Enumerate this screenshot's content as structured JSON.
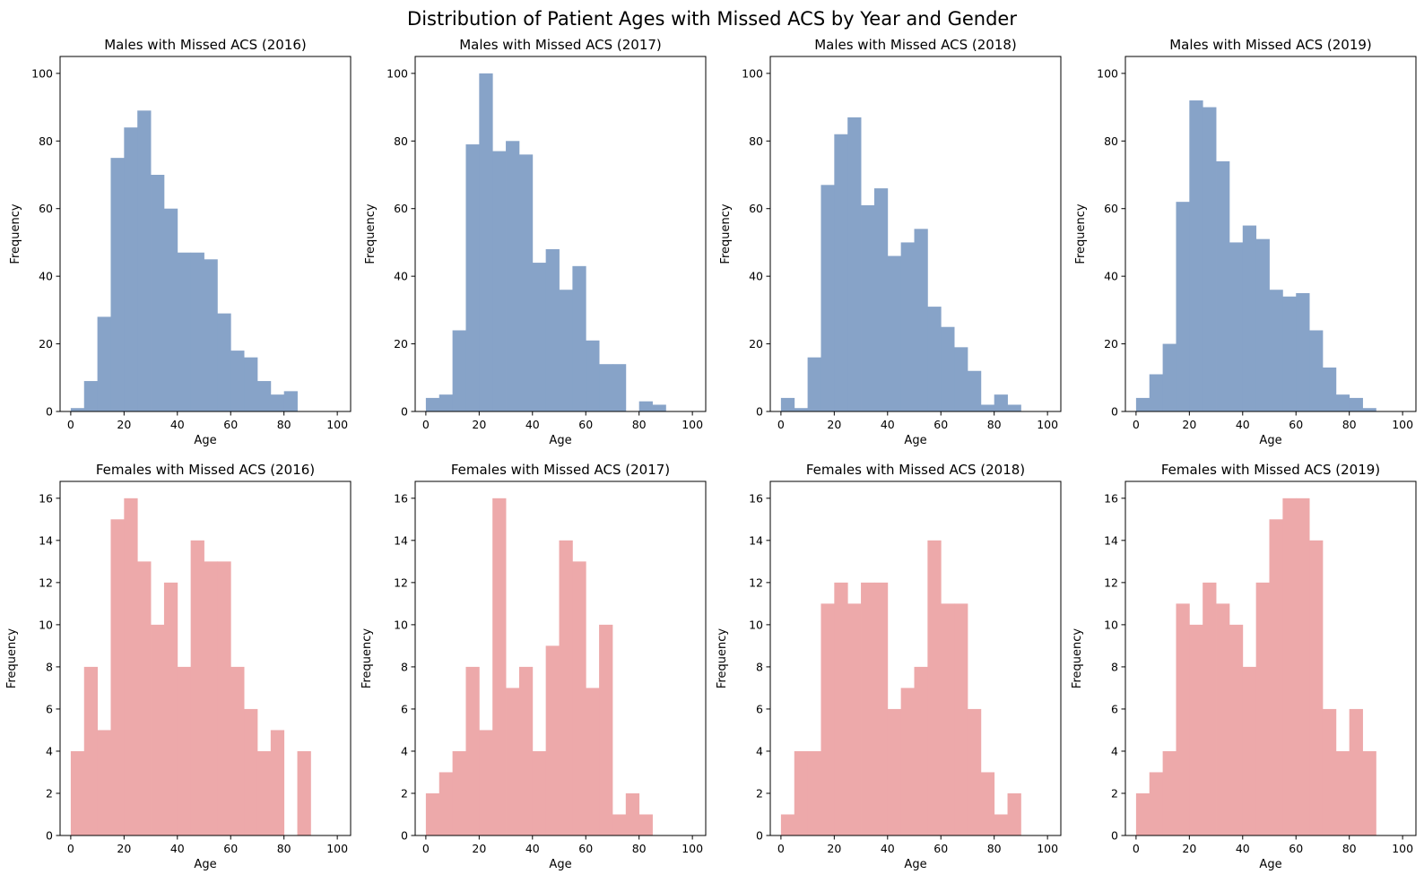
{
  "figure": {
    "title": "Distribution of Patient Ages with Missed ACS by Year and Gender"
  },
  "colors": {
    "male": "#87a3c8",
    "female": "#eda9aa",
    "axis": "#000000"
  },
  "chart_data": [
    {
      "type": "bar",
      "title": "Males with Missed ACS (2016)",
      "xlabel": "Age",
      "ylabel": "Frequency",
      "xlim": [
        -4,
        105
      ],
      "ylim": [
        0,
        105
      ],
      "xticks": [
        0,
        20,
        40,
        60,
        80,
        100
      ],
      "yticks": [
        0,
        20,
        40,
        60,
        80,
        100
      ],
      "bin_width": 5,
      "bin_start": 0,
      "values": [
        1,
        9,
        28,
        75,
        84,
        89,
        70,
        60,
        47,
        47,
        45,
        29,
        18,
        16,
        9,
        5,
        6,
        0,
        0,
        0
      ]
    },
    {
      "type": "bar",
      "title": "Males with Missed ACS (2017)",
      "xlabel": "Age",
      "ylabel": "Frequency",
      "xlim": [
        -4,
        105
      ],
      "ylim": [
        0,
        105
      ],
      "xticks": [
        0,
        20,
        40,
        60,
        80,
        100
      ],
      "yticks": [
        0,
        20,
        40,
        60,
        80,
        100
      ],
      "bin_width": 5,
      "bin_start": 0,
      "values": [
        4,
        5,
        24,
        79,
        100,
        77,
        80,
        76,
        44,
        48,
        36,
        43,
        21,
        14,
        14,
        0,
        3,
        2,
        0,
        0
      ]
    },
    {
      "type": "bar",
      "title": "Males with Missed ACS (2018)",
      "xlabel": "Age",
      "ylabel": "Frequency",
      "xlim": [
        -4,
        105
      ],
      "ylim": [
        0,
        105
      ],
      "xticks": [
        0,
        20,
        40,
        60,
        80,
        100
      ],
      "yticks": [
        0,
        20,
        40,
        60,
        80,
        100
      ],
      "bin_width": 5,
      "bin_start": 0,
      "values": [
        4,
        1,
        16,
        67,
        82,
        87,
        61,
        66,
        46,
        50,
        54,
        31,
        25,
        19,
        12,
        2,
        5,
        2,
        0,
        0
      ]
    },
    {
      "type": "bar",
      "title": "Males with Missed ACS (2019)",
      "xlabel": "Age",
      "ylabel": "Frequency",
      "xlim": [
        -4,
        105
      ],
      "ylim": [
        0,
        105
      ],
      "xticks": [
        0,
        20,
        40,
        60,
        80,
        100
      ],
      "yticks": [
        0,
        20,
        40,
        60,
        80,
        100
      ],
      "bin_width": 5,
      "bin_start": 0,
      "values": [
        4,
        11,
        20,
        62,
        92,
        90,
        74,
        50,
        55,
        51,
        36,
        34,
        35,
        24,
        13,
        5,
        4,
        1,
        0,
        0
      ]
    },
    {
      "type": "bar",
      "title": "Females with Missed ACS (2016)",
      "xlabel": "Age",
      "ylabel": "Frequency",
      "xlim": [
        -4,
        105
      ],
      "ylim": [
        0,
        16.8
      ],
      "xticks": [
        0,
        20,
        40,
        60,
        80,
        100
      ],
      "yticks": [
        0,
        2,
        4,
        6,
        8,
        10,
        12,
        14,
        16
      ],
      "bin_width": 5,
      "bin_start": 0,
      "values": [
        4,
        8,
        5,
        15,
        16,
        13,
        10,
        12,
        8,
        14,
        13,
        13,
        8,
        6,
        4,
        5,
        0,
        4,
        0,
        0
      ]
    },
    {
      "type": "bar",
      "title": "Females with Missed ACS (2017)",
      "xlabel": "Age",
      "ylabel": "Frequency",
      "xlim": [
        -4,
        105
      ],
      "ylim": [
        0,
        16.8
      ],
      "xticks": [
        0,
        20,
        40,
        60,
        80,
        100
      ],
      "yticks": [
        0,
        2,
        4,
        6,
        8,
        10,
        12,
        14,
        16
      ],
      "bin_width": 5,
      "bin_start": 0,
      "values": [
        2,
        3,
        4,
        8,
        5,
        16,
        7,
        8,
        4,
        9,
        14,
        13,
        7,
        10,
        1,
        2,
        1,
        0,
        0,
        0
      ]
    },
    {
      "type": "bar",
      "title": "Females with Missed ACS (2018)",
      "xlabel": "Age",
      "ylabel": "Frequency",
      "xlim": [
        -4,
        105
      ],
      "ylim": [
        0,
        16.8
      ],
      "xticks": [
        0,
        20,
        40,
        60,
        80,
        100
      ],
      "yticks": [
        0,
        2,
        4,
        6,
        8,
        10,
        12,
        14,
        16
      ],
      "bin_width": 5,
      "bin_start": 0,
      "values": [
        1,
        4,
        4,
        11,
        12,
        11,
        12,
        12,
        6,
        7,
        8,
        14,
        11,
        11,
        6,
        3,
        1,
        2,
        0,
        0
      ]
    },
    {
      "type": "bar",
      "title": "Females with Missed ACS (2019)",
      "xlabel": "Age",
      "ylabel": "Frequency",
      "xlim": [
        -4,
        105
      ],
      "ylim": [
        0,
        16.8
      ],
      "xticks": [
        0,
        20,
        40,
        60,
        80,
        100
      ],
      "yticks": [
        0,
        2,
        4,
        6,
        8,
        10,
        12,
        14,
        16
      ],
      "bin_width": 5,
      "bin_start": 0,
      "values": [
        2,
        3,
        4,
        11,
        10,
        12,
        11,
        10,
        8,
        12,
        15,
        16,
        16,
        14,
        6,
        4,
        6,
        4,
        0,
        0
      ]
    }
  ]
}
